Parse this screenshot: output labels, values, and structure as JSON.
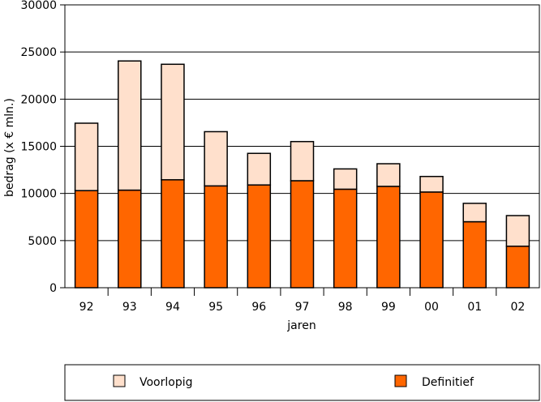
{
  "chart_data": {
    "type": "bar",
    "stacked": true,
    "categories": [
      "92",
      "93",
      "94",
      "95",
      "96",
      "97",
      "98",
      "99",
      "00",
      "01",
      "02"
    ],
    "series": [
      {
        "name": "Definitief",
        "values": [
          10300,
          10350,
          11450,
          10800,
          10900,
          11350,
          10450,
          10750,
          10150,
          7000,
          4400
        ],
        "color": "#FF6600"
      },
      {
        "name": "Voorlopig",
        "values": [
          7150,
          13700,
          12250,
          5750,
          3350,
          4150,
          2150,
          2400,
          1650,
          1950,
          3250
        ],
        "color": "#FFE0CC"
      }
    ],
    "xlabel": "jaren",
    "ylabel": "bedrag (x € mln.)",
    "ylim": [
      0,
      30000
    ],
    "yticks": [
      "0",
      "5000",
      "10000",
      "15000",
      "20000",
      "25000",
      "30000"
    ],
    "grid": true,
    "legend": {
      "placement": "bottom",
      "entries": [
        "Voorlopig",
        "Definitief"
      ]
    }
  }
}
